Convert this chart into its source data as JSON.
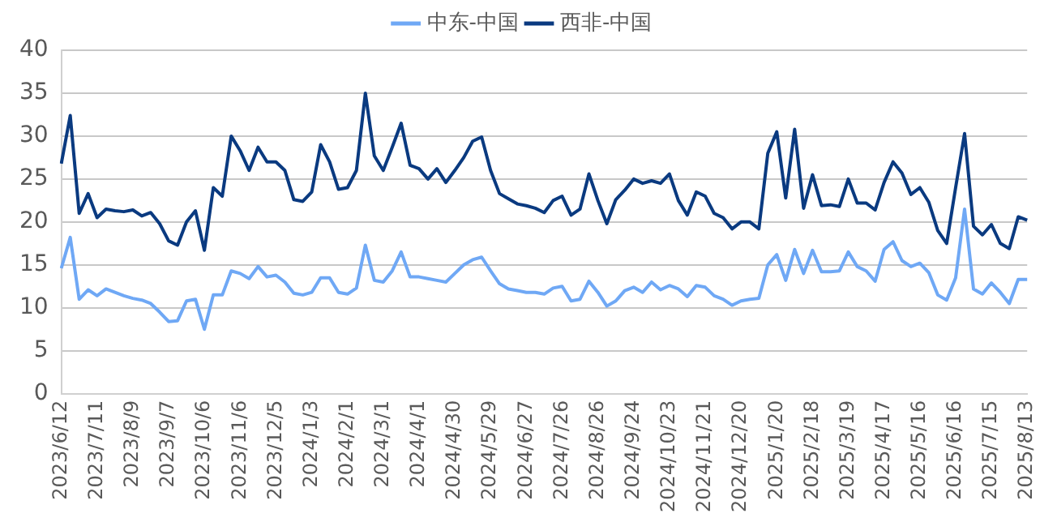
{
  "chart_data": {
    "type": "line",
    "categories": [
      "2023/6/12",
      null,
      null,
      null,
      "2023/7/11",
      null,
      null,
      null,
      "2023/8/9",
      null,
      null,
      null,
      "2023/9/7",
      null,
      null,
      null,
      "2023/10/6",
      null,
      null,
      null,
      "2023/11/6",
      null,
      null,
      null,
      "2023/12/5",
      null,
      null,
      null,
      "2024/1/3",
      null,
      null,
      null,
      "2024/2/1",
      null,
      null,
      null,
      "2024/3/1",
      null,
      null,
      null,
      "2024/4/1",
      null,
      null,
      null,
      "2024/4/30",
      null,
      null,
      null,
      "2024/5/29",
      null,
      null,
      null,
      "2024/6/27",
      null,
      null,
      null,
      "2024/7/26",
      null,
      null,
      null,
      "2024/8/26",
      null,
      null,
      null,
      "2024/9/24",
      null,
      null,
      null,
      "2024/10/23",
      null,
      null,
      null,
      "2024/11/21",
      null,
      null,
      null,
      "2024/12/20",
      null,
      null,
      null,
      "2025/1/20",
      null,
      null,
      null,
      "2025/2/18",
      null,
      null,
      null,
      "2025/3/19",
      null,
      null,
      null,
      "2025/4/17",
      null,
      null,
      null,
      "2025/5/16",
      null,
      null,
      null,
      "2025/6/16",
      null,
      null,
      null,
      "2025/7/15",
      null,
      null,
      null,
      "2025/8/13"
    ],
    "series": [
      {
        "name": "中东-中国",
        "color": "#6fa8f5",
        "values": [
          14.6,
          18.2,
          11,
          12.1,
          11.4,
          12.2,
          11.8,
          11.4,
          11.1,
          10.9,
          10.5,
          9.5,
          8.4,
          8.5,
          10.8,
          11,
          7.5,
          11.5,
          11.5,
          14.3,
          14,
          13.4,
          14.8,
          13.6,
          13.8,
          13,
          11.7,
          11.5,
          11.8,
          13.5,
          13.5,
          11.8,
          11.6,
          12.3,
          17.3,
          13.2,
          13,
          14.3,
          16.5,
          13.6,
          13.6,
          13.4,
          13.2,
          13,
          14,
          15,
          15.6,
          15.9,
          14.3,
          12.8,
          12.2,
          12,
          11.8,
          11.8,
          11.6,
          12.3,
          12.5,
          10.8,
          11,
          13.1,
          11.8,
          10.2,
          10.8,
          12,
          12.4,
          11.8,
          13,
          12.1,
          12.6,
          12.2,
          11.3,
          12.6,
          12.4,
          11.4,
          11,
          10.3,
          10.8,
          11,
          11.1,
          15,
          16.2,
          13.2,
          16.8,
          14,
          16.7,
          14.2,
          14.2,
          14.3,
          16.5,
          14.8,
          14.3,
          13.1,
          16.8,
          17.7,
          15.5,
          14.8,
          15.2,
          14.1,
          11.5,
          10.9,
          13.5,
          21.5,
          12.2,
          11.6,
          12.9,
          11.8,
          10.5,
          13.3,
          13.3
        ]
      },
      {
        "name": "西非-中国",
        "color": "#0a3a80",
        "values": [
          26.8,
          32.4,
          21,
          23.3,
          20.5,
          21.5,
          21.3,
          21.2,
          21.4,
          20.7,
          21.1,
          19.8,
          17.8,
          17.3,
          20,
          21.3,
          16.7,
          24,
          23,
          30,
          28.3,
          26,
          28.7,
          27,
          27,
          26,
          22.6,
          22.4,
          23.5,
          29,
          27,
          23.8,
          24,
          26,
          35,
          27.7,
          26,
          28.7,
          31.5,
          26.6,
          26.2,
          25,
          26.2,
          24.6,
          26,
          27.5,
          29.4,
          29.9,
          26,
          23.3,
          22.7,
          22.1,
          21.9,
          21.6,
          21.1,
          22.5,
          23,
          20.8,
          21.5,
          25.6,
          22.5,
          19.8,
          22.6,
          23.7,
          25,
          24.5,
          24.8,
          24.5,
          25.6,
          22.5,
          20.8,
          23.5,
          23,
          21,
          20.5,
          19.2,
          20,
          20,
          19.2,
          28,
          30.5,
          22.8,
          30.8,
          21.6,
          25.5,
          21.9,
          22,
          21.8,
          25,
          22.2,
          22.2,
          21.4,
          24.6,
          27,
          25.7,
          23.2,
          24,
          22.3,
          19,
          17.5,
          24,
          30.3,
          19.5,
          18.5,
          19.7,
          17.5,
          16.9,
          20.6,
          20.2
        ]
      }
    ],
    "ylim": [
      0,
      40
    ],
    "yticks": [
      0,
      5,
      10,
      15,
      20,
      25,
      30,
      35,
      40
    ],
    "grid": "y",
    "legend": "top",
    "marker": "none",
    "line_style": "solid"
  }
}
